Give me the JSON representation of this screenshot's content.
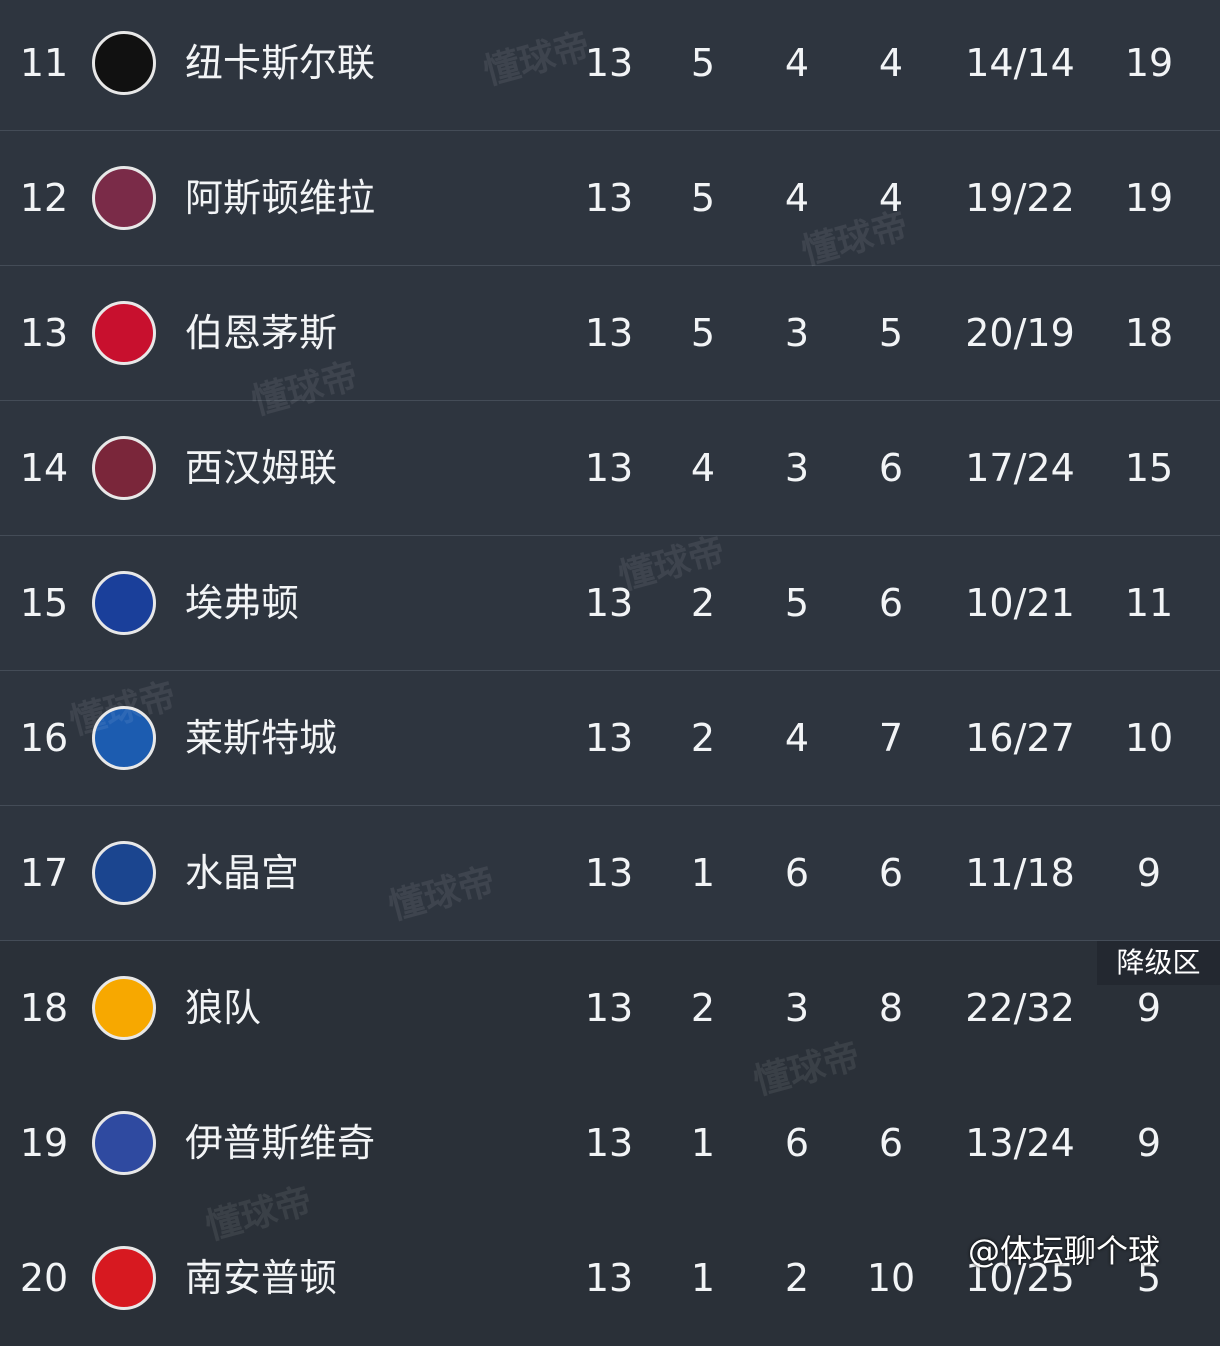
{
  "table": {
    "rows": [
      [
        "11",
        "纽卡斯尔联",
        "13",
        "5",
        "4",
        "4",
        "14/14",
        "19"
      ],
      [
        "12",
        "阿斯顿维拉",
        "13",
        "5",
        "4",
        "4",
        "19/22",
        "19"
      ],
      [
        "13",
        "伯恩茅斯",
        "13",
        "5",
        "3",
        "5",
        "20/19",
        "18"
      ],
      [
        "14",
        "西汉姆联",
        "13",
        "4",
        "3",
        "6",
        "17/24",
        "15"
      ],
      [
        "15",
        "埃弗顿",
        "13",
        "2",
        "5",
        "6",
        "10/21",
        "11"
      ],
      [
        "16",
        "莱斯特城",
        "13",
        "2",
        "4",
        "7",
        "16/27",
        "10"
      ],
      [
        "17",
        "水晶宫",
        "13",
        "1",
        "6",
        "6",
        "11/18",
        "9"
      ],
      [
        "18",
        "狼队",
        "13",
        "2",
        "3",
        "8",
        "22/32",
        "9"
      ],
      [
        "19",
        "伊普斯维奇",
        "13",
        "1",
        "6",
        "6",
        "13/24",
        "9"
      ],
      [
        "20",
        "南安普顿",
        "13",
        "1",
        "2",
        "10",
        "10/25",
        "5"
      ]
    ],
    "relegation_label": "降级区"
  },
  "watermark": "懂球帝",
  "signature": "@体坛聊个球"
}
